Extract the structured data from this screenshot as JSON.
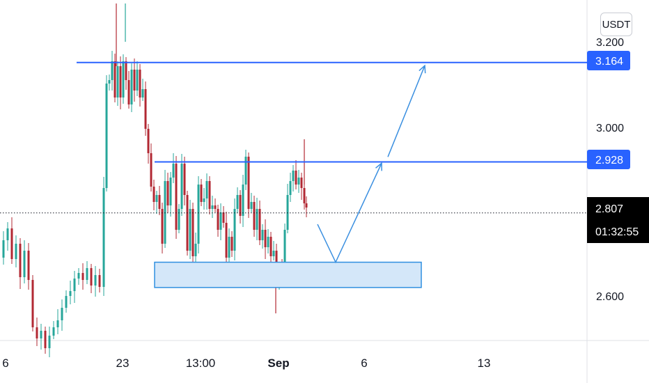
{
  "currency_button": {
    "label": "USDT"
  },
  "colors": {
    "bull": "#26a69a",
    "bear": "#b22833",
    "level": "#2962ff",
    "zone_fill": "#d4e7f9",
    "zone_stroke": "#2f8fe0",
    "arrow": "#3a8fe0",
    "last_price_badge": "#000000"
  },
  "price_axis": {
    "ticks": [
      {
        "value": 3.2,
        "label": "3.200"
      },
      {
        "value": 3.0,
        "label": "3.000"
      },
      {
        "value": 2.6,
        "label": "2.600"
      }
    ],
    "level_badges": [
      {
        "value": 3.164,
        "label": "3.164"
      },
      {
        "value": 2.928,
        "label": "2.928"
      }
    ],
    "last_price": {
      "value": 2.807,
      "label": "2.807",
      "countdown": "01:32:55"
    }
  },
  "time_axis": {
    "labels": [
      "6",
      "23",
      "13:00",
      "Sep",
      "6",
      "13"
    ],
    "bold_label": "Sep"
  },
  "chart_data": {
    "type": "candlestick",
    "quote_currency": "USDT",
    "ylim": [
      2.5,
      3.27
    ],
    "horizontal_levels": [
      3.164,
      2.928
    ],
    "last_price": 2.807,
    "last_price_countdown": "01:32:55",
    "demand_zone": {
      "low": 2.63,
      "high": 2.69
    },
    "projection_path": [
      {
        "from": 2.78,
        "to": 2.69
      },
      {
        "from": 2.69,
        "to": 2.925
      },
      {
        "from": 2.94,
        "to": 3.16
      }
    ]
  }
}
